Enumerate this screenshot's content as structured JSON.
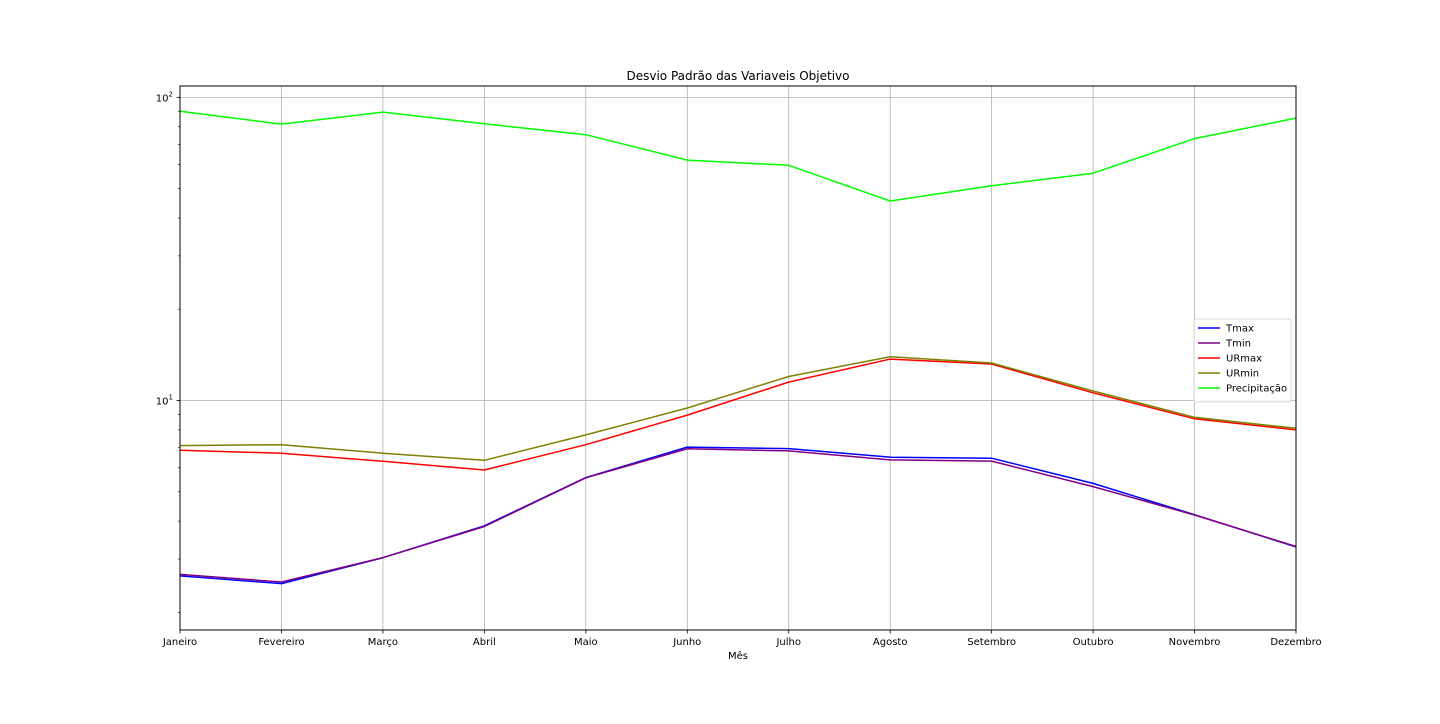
{
  "chart_data": {
    "type": "line",
    "title": "Desvio Padrão das Variaveis Objetivo",
    "xlabel": "Mês",
    "ylabel": "",
    "yscale": "log",
    "ylim": [
      1.75,
      109
    ],
    "yticks": [
      {
        "value": 10,
        "base": "10",
        "exp": "1"
      },
      {
        "value": 100,
        "base": "10",
        "exp": "2"
      }
    ],
    "grid": true,
    "legend_position": "center-right",
    "categories": [
      "Janeiro",
      "Fevereiro",
      "Março",
      "Abril",
      "Maio",
      "Junho",
      "Julho",
      "Agosto",
      "Setembro",
      "Outubro",
      "Novembro",
      "Dezembro"
    ],
    "series": [
      {
        "name": "Tmax",
        "color": "#0000ff",
        "values": [
          2.64,
          2.49,
          3.03,
          3.86,
          5.57,
          7.02,
          6.94,
          6.5,
          6.45,
          5.33,
          4.2,
          3.29
        ]
      },
      {
        "name": "Tmin",
        "color": "#800080",
        "values": [
          2.67,
          2.52,
          3.03,
          3.84,
          5.56,
          6.93,
          6.82,
          6.37,
          6.31,
          5.2,
          4.19,
          3.3
        ]
      },
      {
        "name": "URmax",
        "color": "#ff0000",
        "values": [
          6.85,
          6.7,
          6.3,
          5.9,
          7.15,
          8.95,
          11.5,
          13.7,
          13.2,
          10.6,
          8.7,
          8.0
        ]
      },
      {
        "name": "URmin",
        "color": "#808000",
        "values": [
          7.1,
          7.15,
          6.7,
          6.35,
          7.7,
          9.45,
          12.0,
          13.95,
          13.3,
          10.75,
          8.8,
          8.1
        ]
      },
      {
        "name": "Precipitação",
        "color": "#00ff00",
        "values": [
          90.0,
          81.6,
          89.4,
          81.8,
          75.3,
          62.1,
          59.7,
          45.5,
          51.1,
          56.2,
          73.1,
          85.4
        ]
      }
    ]
  }
}
